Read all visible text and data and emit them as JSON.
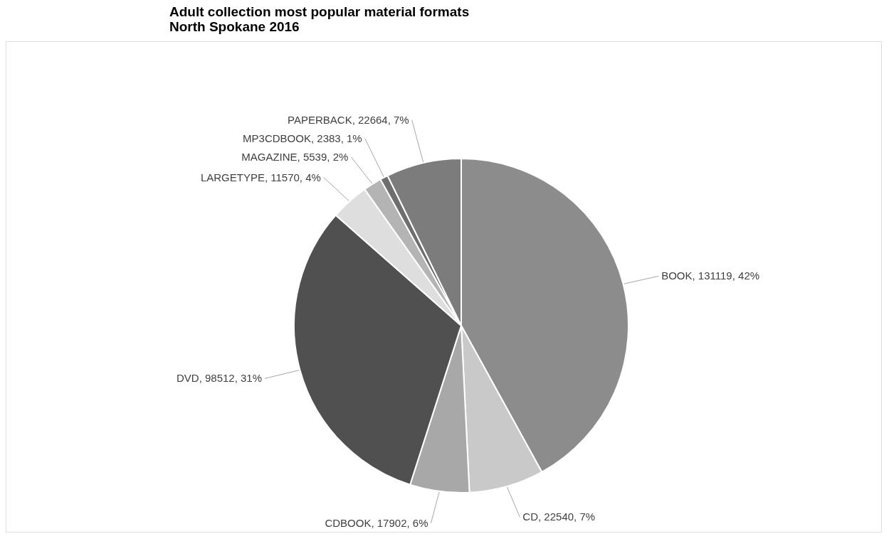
{
  "chart_data": {
    "type": "pie",
    "title": "Adult collection most popular material formats\nNorth Spokane 2016",
    "categories": [
      "BOOK",
      "CD",
      "CDBOOK",
      "DVD",
      "LARGETYPE",
      "MAGAZINE",
      "MP3CDBOOK",
      "PAPERBACK"
    ],
    "values": [
      131119,
      22540,
      17902,
      98512,
      11570,
      5539,
      2383,
      22664
    ],
    "value_labels": [
      "131119, 42%",
      "22540, 7%",
      "17902, 6%",
      "98512, 31%",
      "11570, 4%",
      "5539, 2%",
      "2383, 1%",
      "22664, 7%"
    ],
    "colors": [
      "#8c8c8c",
      "#c9c9c9",
      "#a8a8a8",
      "#505050",
      "#dedede",
      "#b4b4b4",
      "#6e6e6e",
      "#7c7c7c"
    ],
    "legend": false
  }
}
